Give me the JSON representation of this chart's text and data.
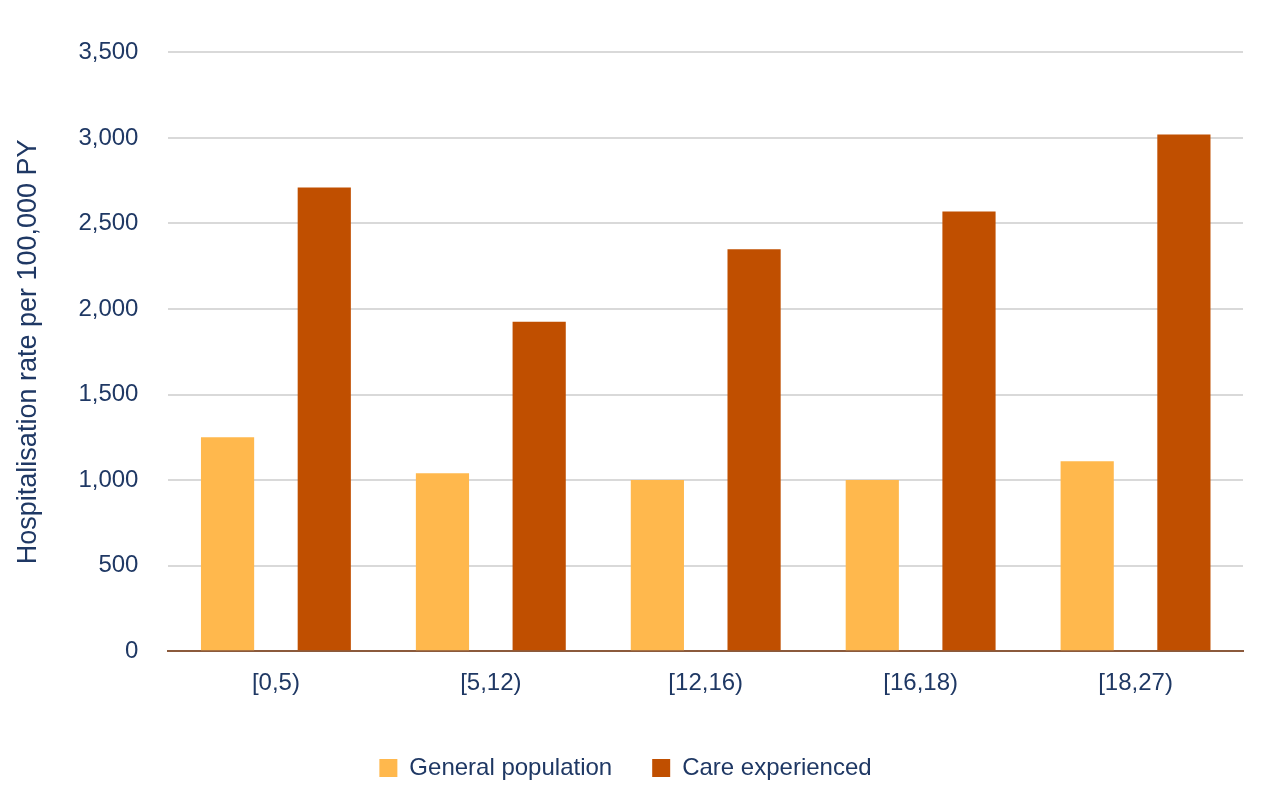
{
  "chart_data": {
    "type": "bar",
    "ylabel": "Hospitalisation rate per 100,000 PY",
    "categories": [
      "[0,5)",
      "[5,12)",
      "[12,16)",
      "[16,18)",
      "[18,27)"
    ],
    "series": [
      {
        "name": "General population",
        "color": "#ffb84d",
        "values": [
          1250,
          1040,
          1000,
          1000,
          1110
        ]
      },
      {
        "name": "Care experienced",
        "color": "#c04f00",
        "values": [
          2710,
          1925,
          2350,
          2570,
          3020
        ]
      }
    ],
    "ylim": [
      0,
      3500
    ],
    "yticks": [
      0,
      500,
      {
        "value": 1000,
        "label": "1,000"
      },
      {
        "value": 1500,
        "label": "1,500"
      },
      {
        "value": 2000,
        "label": "2,000"
      },
      {
        "value": 2500,
        "label": "2,500"
      },
      {
        "value": 3000,
        "label": "3,000"
      },
      {
        "value": 3500,
        "label": "3,500"
      }
    ],
    "grid": "y",
    "legend": "bottom"
  }
}
